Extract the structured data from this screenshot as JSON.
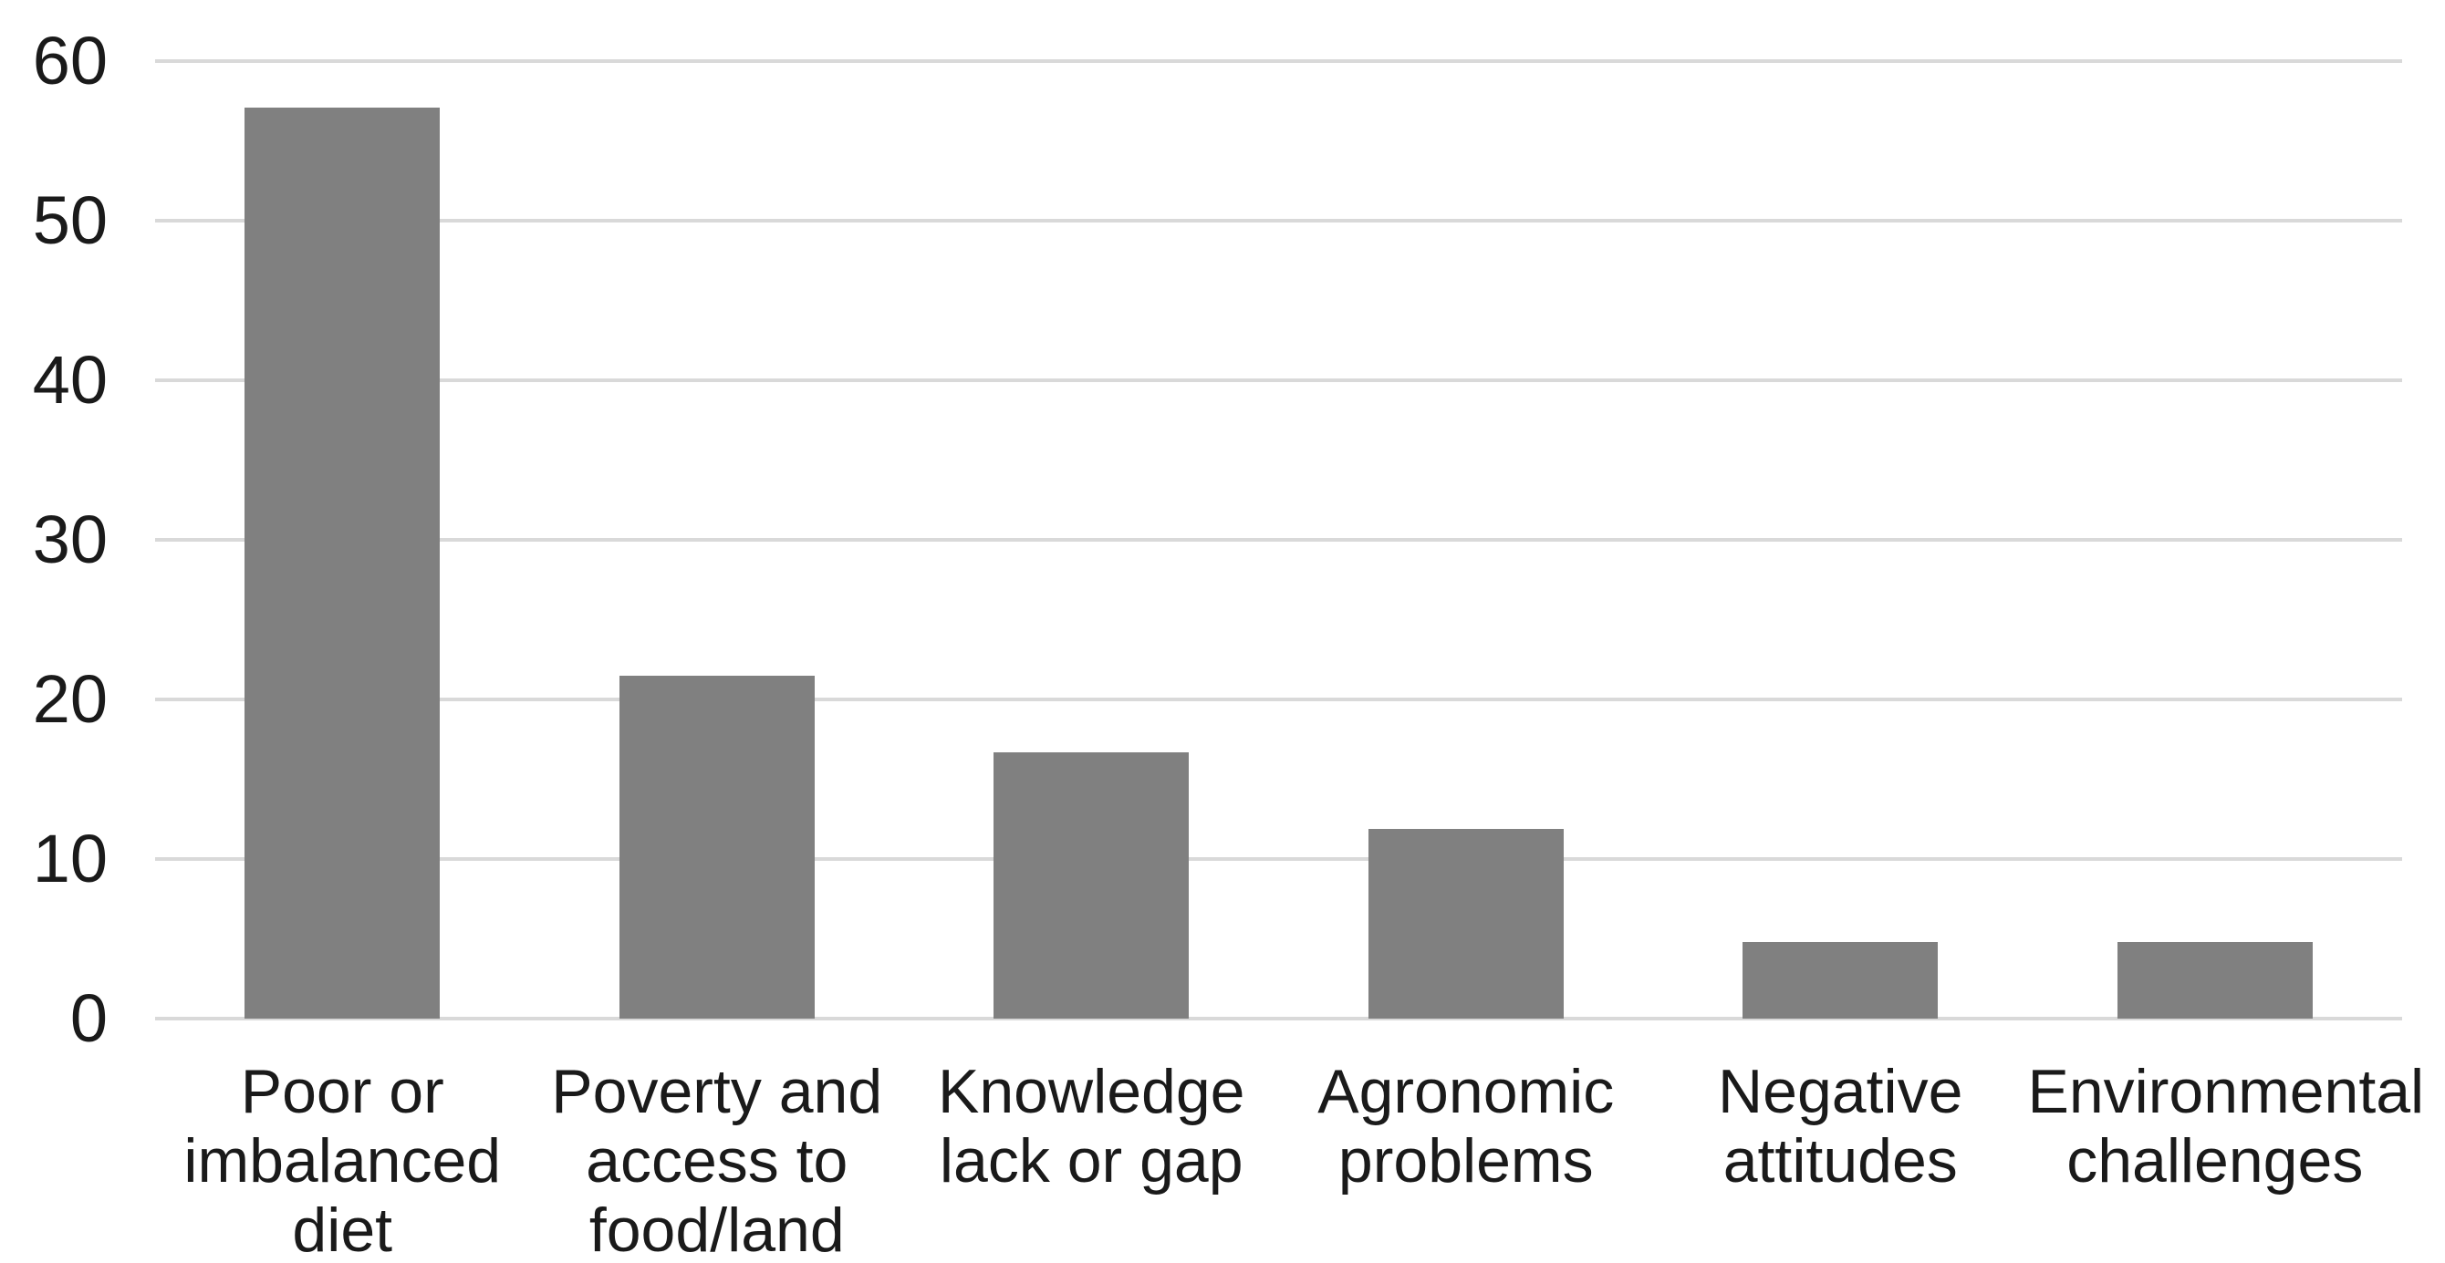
{
  "chart_data": {
    "type": "bar",
    "title": "",
    "xlabel": "",
    "ylabel": "",
    "categories": [
      [
        "Poor or",
        "imbalanced",
        "diet"
      ],
      [
        "Poverty and",
        "access to",
        "food/land"
      ],
      [
        "Knowledge",
        "lack or gap"
      ],
      [
        "Agronomic",
        "problems"
      ],
      [
        "Negative",
        "attitudes"
      ],
      [
        "Environmental",
        "challenges"
      ]
    ],
    "values": [
      57.1,
      21.5,
      16.7,
      11.9,
      4.8,
      4.8
    ],
    "ylim": [
      0,
      60
    ],
    "yticks": [
      0,
      10,
      20,
      30,
      40,
      50,
      60
    ],
    "grid": "horizontal",
    "legend": "none",
    "colors": {
      "bar": "#808080",
      "gridline": "#d9d9d9",
      "text": "#1a1a1a",
      "background": "#ffffff"
    }
  }
}
